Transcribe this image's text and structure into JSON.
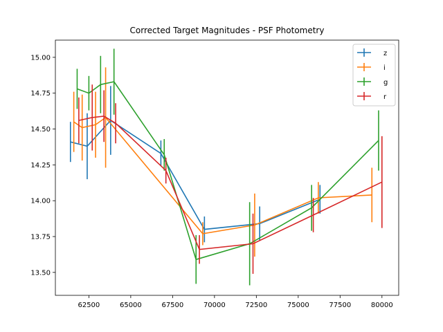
{
  "chart_data": {
    "type": "line",
    "title": "Corrected Target Magnitudes - PSF Photometry",
    "xlabel": "",
    "ylabel": "",
    "xlim": [
      60500,
      81000
    ],
    "ylim": [
      15.12,
      13.34
    ],
    "y_inverted": true,
    "x_ticks": [
      62500,
      65000,
      67500,
      70000,
      72500,
      75000,
      77500,
      80000
    ],
    "x_tick_labels": [
      "62500",
      "65000",
      "67500",
      "70000",
      "72500",
      "75000",
      "77500",
      "80000"
    ],
    "y_ticks": [
      13.5,
      13.75,
      14.0,
      14.25,
      14.5,
      14.75,
      15.0
    ],
    "y_tick_labels": [
      "13.50",
      "13.75",
      "14.00",
      "14.25",
      "14.50",
      "14.75",
      "15.00"
    ],
    "grid": false,
    "legend_position": "top-right",
    "series": [
      {
        "name": "z",
        "color": "#1f77b4",
        "x": [
          61400,
          62400,
          63800,
          66800,
          69400,
          72700,
          76300
        ],
        "y": [
          14.41,
          14.38,
          14.56,
          14.33,
          13.8,
          13.84,
          14.01
        ],
        "yerr": [
          0.14,
          0.23,
          0.24,
          0.09,
          0.09,
          0.12,
          0.1
        ]
      },
      {
        "name": "i",
        "color": "#ff7f0e",
        "x": [
          61600,
          62100,
          62900,
          63500,
          69300,
          72400,
          76200,
          79400
        ],
        "y": [
          14.55,
          14.51,
          14.53,
          14.58,
          13.77,
          13.83,
          14.02,
          14.04
        ],
        "yerr": [
          0.21,
          0.23,
          0.23,
          0.35,
          0.08,
          0.22,
          0.11,
          0.19
        ]
      },
      {
        "name": "g",
        "color": "#2ca02c",
        "x": [
          61800,
          62500,
          63200,
          64000,
          67000,
          68900,
          72100,
          75800,
          79800
        ],
        "y": [
          14.78,
          14.75,
          14.81,
          14.83,
          14.32,
          13.59,
          13.7,
          13.95,
          14.42
        ],
        "yerr": [
          0.14,
          0.12,
          0.2,
          0.23,
          0.11,
          0.17,
          0.29,
          0.16,
          0.21
        ]
      },
      {
        "name": "r",
        "color": "#d62728",
        "x": [
          61900,
          62700,
          63400,
          64100,
          67100,
          69100,
          72300,
          75900,
          80000
        ],
        "y": [
          14.56,
          14.58,
          14.59,
          14.54,
          14.21,
          13.66,
          13.7,
          13.9,
          14.13
        ],
        "yerr": [
          0.16,
          0.23,
          0.18,
          0.14,
          0.09,
          0.1,
          0.21,
          0.12,
          0.32
        ]
      }
    ]
  }
}
